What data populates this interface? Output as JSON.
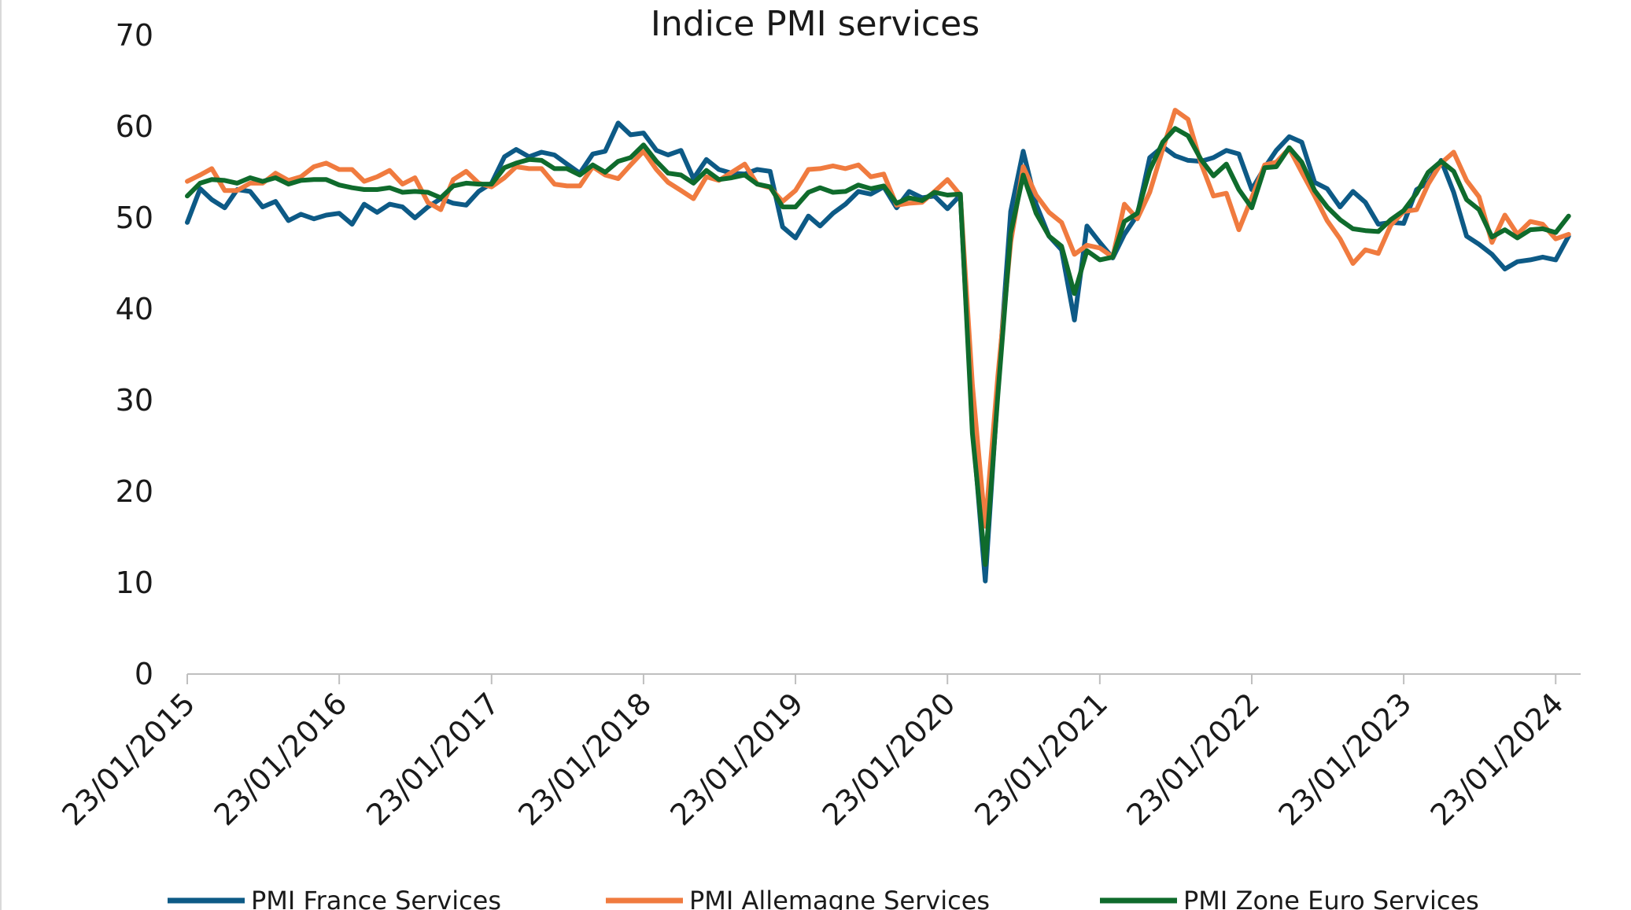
{
  "chart_data": {
    "type": "line",
    "title": "Indice PMI services",
    "xlabel": "",
    "ylabel": "",
    "ylim": [
      0,
      70
    ],
    "yticks": [
      0,
      10,
      20,
      30,
      40,
      50,
      60,
      70
    ],
    "xlim": [
      "2015-01-23",
      "2024-03-23"
    ],
    "xtick_labels": [
      "23/01/2015",
      "23/01/2016",
      "23/01/2017",
      "23/01/2018",
      "23/01/2019",
      "23/01/2020",
      "23/01/2021",
      "23/01/2022",
      "23/01/2023",
      "23/01/2024"
    ],
    "grid": false,
    "legend_position": "bottom",
    "x": [
      "2015-01",
      "2015-02",
      "2015-03",
      "2015-04",
      "2015-05",
      "2015-06",
      "2015-07",
      "2015-08",
      "2015-09",
      "2015-10",
      "2015-11",
      "2015-12",
      "2016-01",
      "2016-02",
      "2016-03",
      "2016-04",
      "2016-05",
      "2016-06",
      "2016-07",
      "2016-08",
      "2016-09",
      "2016-10",
      "2016-11",
      "2016-12",
      "2017-01",
      "2017-02",
      "2017-03",
      "2017-04",
      "2017-05",
      "2017-06",
      "2017-07",
      "2017-08",
      "2017-09",
      "2017-10",
      "2017-11",
      "2017-12",
      "2018-01",
      "2018-02",
      "2018-03",
      "2018-04",
      "2018-05",
      "2018-06",
      "2018-07",
      "2018-08",
      "2018-09",
      "2018-10",
      "2018-11",
      "2018-12",
      "2019-01",
      "2019-02",
      "2019-03",
      "2019-04",
      "2019-05",
      "2019-06",
      "2019-07",
      "2019-08",
      "2019-09",
      "2019-10",
      "2019-11",
      "2019-12",
      "2020-01",
      "2020-02",
      "2020-03",
      "2020-04",
      "2020-05",
      "2020-06",
      "2020-07",
      "2020-08",
      "2020-09",
      "2020-10",
      "2020-11",
      "2020-12",
      "2021-01",
      "2021-02",
      "2021-03",
      "2021-04",
      "2021-05",
      "2021-06",
      "2021-07",
      "2021-08",
      "2021-09",
      "2021-10",
      "2021-11",
      "2021-12",
      "2022-01",
      "2022-02",
      "2022-03",
      "2022-04",
      "2022-05",
      "2022-06",
      "2022-07",
      "2022-08",
      "2022-09",
      "2022-10",
      "2022-11",
      "2022-12",
      "2023-01",
      "2023-02",
      "2023-03",
      "2023-04",
      "2023-05",
      "2023-06",
      "2023-07",
      "2023-08",
      "2023-09",
      "2023-10",
      "2023-11",
      "2023-12",
      "2024-01",
      "2024-02"
    ],
    "series": [
      {
        "name": "PMI France Services",
        "color": "#0d5a86",
        "values": [
          49.5,
          53.2,
          52.0,
          51.1,
          53.1,
          52.9,
          51.2,
          51.8,
          49.7,
          50.4,
          49.9,
          50.3,
          50.5,
          49.3,
          51.5,
          50.6,
          51.5,
          51.2,
          50.0,
          51.2,
          52.1,
          51.6,
          51.4,
          52.9,
          53.8,
          56.7,
          57.5,
          56.7,
          57.2,
          56.9,
          55.9,
          54.9,
          57.0,
          57.3,
          60.4,
          59.1,
          59.3,
          57.4,
          56.9,
          57.4,
          54.3,
          56.4,
          55.3,
          54.9,
          54.8,
          55.3,
          55.1,
          49.0,
          47.8,
          50.2,
          49.1,
          50.5,
          51.5,
          52.9,
          52.6,
          53.4,
          51.1,
          52.9,
          52.2,
          52.4,
          51.0,
          52.5,
          27.4,
          10.2,
          31.1,
          50.7,
          57.3,
          51.5,
          48.0,
          46.5,
          38.8,
          49.1,
          47.3,
          45.6,
          48.2,
          50.3,
          56.6,
          57.8,
          56.8,
          56.3,
          56.2,
          56.6,
          57.4,
          57.0,
          53.1,
          55.5,
          57.4,
          58.9,
          58.3,
          53.9,
          53.2,
          51.2,
          52.9,
          51.7,
          49.3,
          49.5,
          49.4,
          53.1,
          53.9,
          56.3,
          52.8,
          48.0,
          47.1,
          46.0,
          44.4,
          45.2,
          45.4,
          45.7,
          45.4,
          48.0
        ]
      },
      {
        "name": "PMI Allemagne Services",
        "color": "#f07b3f",
        "values": [
          54.0,
          54.7,
          55.4,
          53.0,
          53.0,
          53.8,
          53.8,
          54.9,
          54.1,
          54.5,
          55.6,
          56.0,
          55.3,
          55.3,
          54.0,
          54.5,
          55.2,
          53.7,
          54.4,
          51.7,
          50.9,
          54.2,
          55.1,
          53.8,
          53.4,
          54.4,
          55.6,
          55.4,
          55.4,
          53.7,
          53.5,
          53.5,
          55.6,
          54.7,
          54.3,
          55.8,
          57.3,
          55.3,
          53.9,
          53.0,
          52.1,
          54.5,
          54.1,
          55.0,
          55.9,
          53.7,
          53.3,
          51.8,
          53.0,
          55.3,
          55.4,
          55.7,
          55.4,
          55.8,
          54.5,
          54.8,
          51.4,
          51.6,
          51.7,
          52.9,
          54.2,
          52.5,
          31.7,
          16.2,
          32.6,
          47.3,
          55.6,
          52.5,
          50.6,
          49.5,
          46.0,
          47.0,
          46.7,
          45.7,
          51.5,
          49.9,
          52.8,
          57.5,
          61.8,
          60.8,
          56.0,
          52.4,
          52.7,
          48.7,
          52.2,
          55.8,
          56.1,
          57.6,
          55.0,
          52.4,
          49.7,
          47.7,
          45.0,
          46.5,
          46.1,
          49.2,
          50.7,
          50.9,
          53.7,
          56.0,
          57.2,
          54.1,
          52.3,
          47.3,
          50.3,
          48.2,
          49.6,
          49.3,
          47.7,
          48.2
        ]
      },
      {
        "name": "PMI Zone Euro Services",
        "color": "#0f6b2c",
        "values": [
          52.4,
          53.8,
          54.2,
          54.1,
          53.8,
          54.4,
          54.0,
          54.4,
          53.7,
          54.1,
          54.2,
          54.2,
          53.6,
          53.3,
          53.1,
          53.1,
          53.3,
          52.8,
          52.9,
          52.8,
          52.2,
          53.5,
          53.8,
          53.7,
          53.7,
          55.5,
          56.0,
          56.4,
          56.3,
          55.4,
          55.4,
          54.7,
          55.8,
          55.0,
          56.2,
          56.6,
          58.0,
          56.2,
          54.9,
          54.7,
          53.8,
          55.2,
          54.2,
          54.4,
          54.7,
          53.7,
          53.4,
          51.2,
          51.2,
          52.8,
          53.3,
          52.8,
          52.9,
          53.6,
          53.2,
          53.5,
          51.6,
          52.2,
          51.9,
          52.8,
          52.5,
          52.6,
          26.4,
          12.0,
          30.5,
          48.3,
          54.7,
          50.5,
          48.0,
          46.9,
          41.7,
          46.4,
          45.4,
          45.7,
          49.6,
          50.5,
          55.2,
          58.3,
          59.8,
          59.0,
          56.4,
          54.6,
          55.9,
          53.1,
          51.1,
          55.5,
          55.6,
          57.7,
          56.1,
          53.0,
          51.2,
          49.8,
          48.8,
          48.6,
          48.5,
          49.8,
          50.8,
          52.7,
          55.0,
          56.2,
          55.1,
          52.0,
          50.9,
          47.9,
          48.7,
          47.8,
          48.7,
          48.8,
          48.4,
          50.2
        ]
      }
    ]
  }
}
